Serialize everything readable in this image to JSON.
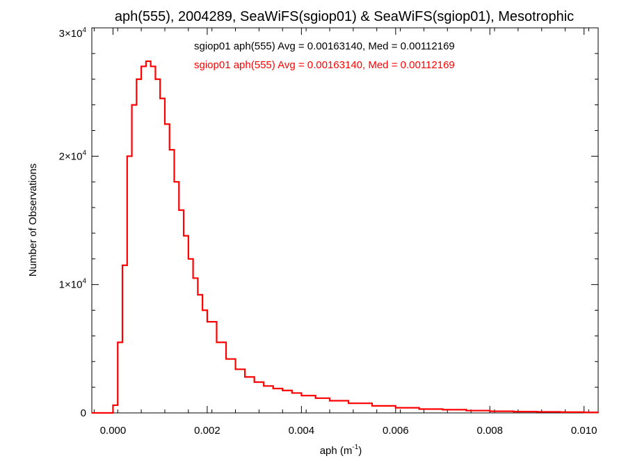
{
  "chart_data": {
    "type": "line",
    "title": "aph(555), 2004289, SeaWiFS(sgiop01) & SeaWiFS(sgiop01), Mesotrophic",
    "xlabel": "aph (m",
    "xlabel_exponent": "-1",
    "xlabel_suffix": ")",
    "ylabel": "Number of Observations",
    "xlim": [
      -0.00045,
      0.0103
    ],
    "ylim": [
      0,
      30000
    ],
    "x_ticks": [
      {
        "value": 0.0,
        "label": "0.000"
      },
      {
        "value": 0.002,
        "label": "0.002"
      },
      {
        "value": 0.004,
        "label": "0.004"
      },
      {
        "value": 0.006,
        "label": "0.006"
      },
      {
        "value": 0.008,
        "label": "0.008"
      },
      {
        "value": 0.01,
        "label": "0.010"
      }
    ],
    "y_ticks": [
      {
        "value": 0,
        "mantissa": "0",
        "exponent": ""
      },
      {
        "value": 10000,
        "mantissa": "1×10",
        "exponent": "4"
      },
      {
        "value": 20000,
        "mantissa": "2×10",
        "exponent": "4"
      },
      {
        "value": 30000,
        "mantissa": "3×10",
        "exponent": "4"
      }
    ],
    "grid": false,
    "legend_position": "top-center",
    "series": [
      {
        "name": "sgiop01 aph(555) Avg = 0.00163140, Med = 0.00112169",
        "color": "#000000",
        "x": [
          -0.00045,
          -0.0001,
          0.0,
          0.0001,
          0.0002,
          0.0003,
          0.0004,
          0.0005,
          0.0006,
          0.0007,
          0.0008,
          0.0009,
          0.001,
          0.0011,
          0.0012,
          0.0013,
          0.0014,
          0.0015,
          0.0016,
          0.0017,
          0.0018,
          0.0019,
          0.002,
          0.0022,
          0.0024,
          0.0026,
          0.0028,
          0.003,
          0.0032,
          0.0034,
          0.0036,
          0.0038,
          0.004,
          0.0043,
          0.0046,
          0.005,
          0.0055,
          0.006,
          0.0065,
          0.007,
          0.0075,
          0.008,
          0.0085,
          0.009,
          0.0095,
          0.01,
          0.0103
        ],
        "y": [
          0,
          0,
          600,
          5500,
          11500,
          20000,
          24000,
          26000,
          27000,
          27400,
          27000,
          26000,
          24500,
          22500,
          20500,
          18000,
          15800,
          13800,
          12000,
          10500,
          9200,
          8000,
          7100,
          5500,
          4200,
          3400,
          2800,
          2400,
          2100,
          1900,
          1750,
          1550,
          1350,
          1150,
          950,
          750,
          550,
          400,
          300,
          250,
          180,
          130,
          100,
          80,
          60,
          40,
          30
        ]
      },
      {
        "name": "sgiop01 aph(555) Avg = 0.00163140, Med = 0.00112169",
        "color": "#ff0000",
        "x": [
          -0.00045,
          -0.0001,
          0.0,
          0.0001,
          0.0002,
          0.0003,
          0.0004,
          0.0005,
          0.0006,
          0.0007,
          0.0008,
          0.0009,
          0.001,
          0.0011,
          0.0012,
          0.0013,
          0.0014,
          0.0015,
          0.0016,
          0.0017,
          0.0018,
          0.0019,
          0.002,
          0.0022,
          0.0024,
          0.0026,
          0.0028,
          0.003,
          0.0032,
          0.0034,
          0.0036,
          0.0038,
          0.004,
          0.0043,
          0.0046,
          0.005,
          0.0055,
          0.006,
          0.0065,
          0.007,
          0.0075,
          0.008,
          0.0085,
          0.009,
          0.0095,
          0.01,
          0.0103
        ],
        "y": [
          0,
          0,
          600,
          5500,
          11500,
          20000,
          24000,
          26000,
          27000,
          27400,
          27000,
          26000,
          24500,
          22500,
          20500,
          18000,
          15800,
          13800,
          12000,
          10500,
          9200,
          8000,
          7100,
          5500,
          4200,
          3400,
          2800,
          2400,
          2100,
          1900,
          1750,
          1550,
          1350,
          1150,
          950,
          750,
          550,
          400,
          300,
          250,
          180,
          130,
          100,
          80,
          60,
          40,
          30
        ]
      }
    ]
  }
}
